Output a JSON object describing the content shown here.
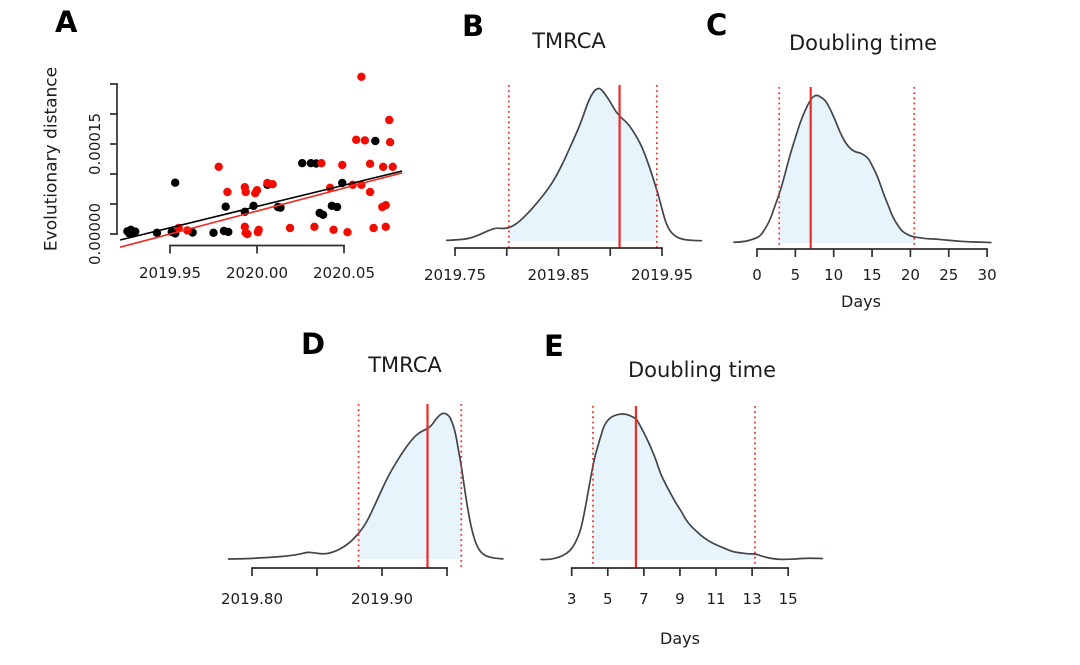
{
  "figure": {
    "background": "#ffffff"
  },
  "colors": {
    "curve": "#40464b",
    "fill": "#e7f4fb",
    "red_line": "#ee2c24",
    "red_point": "#f20c00",
    "black_point": "#000000",
    "axis": "#2e2e2e",
    "text": "#1c1c1c"
  },
  "chart_data": [
    {
      "panel": "A",
      "type": "scatter",
      "title": "",
      "xlabel": "",
      "ylabel": "Evolutionary distance",
      "xlim": [
        2019.92,
        2020.085
      ],
      "ylim": [
        0,
        0.00026
      ],
      "x_ticks": [
        2019.95,
        2020.0,
        2020.05
      ],
      "x_tick_labels": [
        "2019.95",
        "2020.00",
        "2020.05"
      ],
      "y_ticks": [
        0,
        5e-05,
        0.0001,
        0.00015,
        0.0002,
        0.00025
      ],
      "y_tick_labels": [
        "0.00000",
        "",
        "",
        "0.00015",
        "",
        ""
      ],
      "series": [
        {
          "name": "clade-black",
          "color": "#000000",
          "points": [
            [
              2019.9255,
              4.5e-06
            ],
            [
              2019.9265,
              1.5e-06
            ],
            [
              2019.9275,
              7e-06
            ],
            [
              2019.9285,
              2e-06
            ],
            [
              2019.93,
              4e-06
            ],
            [
              2019.9425,
              2e-06
            ],
            [
              2019.951,
              3.5e-06
            ],
            [
              2019.953,
              1e-06
            ],
            [
              2019.953,
              8.55e-05
            ],
            [
              2019.963,
              2.5e-06
            ],
            [
              2019.975,
              2e-06
            ],
            [
              2019.981,
              5e-06
            ],
            [
              2019.982,
              4.55e-05
            ],
            [
              2019.9835,
              3.5e-06
            ],
            [
              2019.993,
              3.7e-05
            ],
            [
              2019.998,
              4.7e-05
            ],
            [
              2020.006,
              8.2e-05
            ],
            [
              2020.012,
              4.5e-05
            ],
            [
              2020.0135,
              4.4e-05
            ],
            [
              2020.026,
              0.000118
            ],
            [
              2020.031,
              0.000118
            ],
            [
              2020.034,
              0.0001175
            ],
            [
              2020.036,
              3.5e-05
            ],
            [
              2020.038,
              3.2e-05
            ],
            [
              2020.043,
              4.7e-05
            ],
            [
              2020.046,
              4.5e-05
            ],
            [
              2020.049,
              8.5e-05
            ],
            [
              2020.068,
              0.000155
            ]
          ]
        },
        {
          "name": "clade-red",
          "color": "#f20c00",
          "points": [
            [
              2019.955,
              1e-05
            ],
            [
              2019.96,
              6e-06
            ],
            [
              2019.978,
              0.000112
            ],
            [
              2019.983,
              7e-05
            ],
            [
              2019.993,
              7.8e-05
            ],
            [
              2019.9935,
              7e-05
            ],
            [
              2019.993,
              1.2e-05
            ],
            [
              2019.9935,
              2e-06
            ],
            [
              2019.9945,
              0.0
            ],
            [
              2019.999,
              6.8e-05
            ],
            [
              2020.0,
              7.3e-05
            ],
            [
              2020.0005,
              3e-06
            ],
            [
              2020.001,
              7e-06
            ],
            [
              2020.006,
              8.5e-05
            ],
            [
              2020.009,
              8.3e-05
            ],
            [
              2020.019,
              1e-05
            ],
            [
              2020.033,
              1.2e-05
            ],
            [
              2020.037,
              0.000118
            ],
            [
              2020.042,
              7.7e-05
            ],
            [
              2020.044,
              7e-06
            ],
            [
              2020.049,
              0.000115
            ],
            [
              2020.052,
              3e-06
            ],
            [
              2020.055,
              8.2e-05
            ],
            [
              2020.057,
              0.000157
            ],
            [
              2020.06,
              8.2e-05
            ],
            [
              2020.06,
              0.000262
            ],
            [
              2020.062,
              0.000156
            ],
            [
              2020.065,
              0.000117
            ],
            [
              2020.065,
              7e-05
            ],
            [
              2020.067,
              1e-05
            ],
            [
              2020.072,
              4.5e-05
            ],
            [
              2020.0725,
              0.000112
            ],
            [
              2020.074,
              4.8e-05
            ],
            [
              2020.074,
              1.2e-05
            ],
            [
              2020.076,
              0.00019
            ],
            [
              2020.0765,
              0.000153
            ],
            [
              2020.078,
              0.000112
            ]
          ]
        }
      ],
      "regression_lines": [
        {
          "name": "black-fit",
          "color": "#000000",
          "x1": 2019.9213,
          "y1": -1e-05,
          "x2": 2020.0834,
          "y2": 0.000105
        },
        {
          "name": "red-fit",
          "color": "#ee2c24",
          "x1": 2019.9213,
          "y1": -2.2e-05,
          "x2": 2020.0834,
          "y2": 0.000102
        }
      ]
    },
    {
      "panel": "B",
      "type": "density",
      "title": "TMRCA",
      "xlabel": "",
      "x_ticks": [
        2019.75,
        2019.8,
        2019.85,
        2019.9,
        2019.95
      ],
      "x_tick_labels": [
        "2019.75",
        "",
        "2019.85",
        "",
        "2019.95"
      ],
      "median": 2019.909,
      "hpd_interval": [
        2019.802,
        2019.945
      ],
      "curve": [
        [
          2019.742,
          0.004
        ],
        [
          2019.755,
          0.008
        ],
        [
          2019.765,
          0.018
        ],
        [
          2019.775,
          0.045
        ],
        [
          2019.7835,
          0.072
        ],
        [
          2019.79,
          0.086
        ],
        [
          2019.7965,
          0.08
        ],
        [
          2019.803,
          0.088
        ],
        [
          2019.81,
          0.115
        ],
        [
          2019.8165,
          0.155
        ],
        [
          2019.823,
          0.2
        ],
        [
          2019.83,
          0.255
        ],
        [
          2019.8365,
          0.31
        ],
        [
          2019.843,
          0.37
        ],
        [
          2019.849,
          0.44
        ],
        [
          2019.855,
          0.52
        ],
        [
          2019.861,
          0.61
        ],
        [
          2019.867,
          0.7
        ],
        [
          2019.8725,
          0.79
        ],
        [
          2019.877,
          0.88
        ],
        [
          2019.881,
          0.945
        ],
        [
          2019.885,
          0.985
        ],
        [
          2019.8885,
          1.0
        ],
        [
          2019.8915,
          0.99
        ],
        [
          2019.895,
          0.96
        ],
        [
          2019.9,
          0.91
        ],
        [
          2019.9045,
          0.855
        ],
        [
          2019.908,
          0.825
        ],
        [
          2019.9115,
          0.8
        ],
        [
          2019.916,
          0.775
        ],
        [
          2019.921,
          0.73
        ],
        [
          2019.926,
          0.675
        ],
        [
          2019.931,
          0.61
        ],
        [
          2019.9355,
          0.53
        ],
        [
          2019.94,
          0.44
        ],
        [
          2019.9445,
          0.345
        ],
        [
          2019.9485,
          0.25
        ],
        [
          2019.9515,
          0.17
        ],
        [
          2019.9545,
          0.105
        ],
        [
          2019.9585,
          0.058
        ],
        [
          2019.963,
          0.03
        ],
        [
          2019.969,
          0.012
        ],
        [
          2019.977,
          0.004
        ],
        [
          2019.988,
          0.002
        ]
      ]
    },
    {
      "panel": "C",
      "type": "density",
      "title": "Doubling time",
      "xlabel": "Days",
      "x_ticks": [
        0,
        5,
        10,
        15,
        20,
        25,
        30
      ],
      "x_tick_labels": [
        "0",
        "5",
        "10",
        "15",
        "20",
        "25",
        "30"
      ],
      "median": 7.0,
      "hpd_interval": [
        2.9,
        20.5
      ],
      "curve": [
        [
          -3.0,
          0.005
        ],
        [
          -1.8,
          0.007
        ],
        [
          -0.5,
          0.025
        ],
        [
          0.4,
          0.045
        ],
        [
          1.0,
          0.09
        ],
        [
          1.7,
          0.155
        ],
        [
          2.3,
          0.245
        ],
        [
          3.0,
          0.345
        ],
        [
          3.7,
          0.475
        ],
        [
          4.3,
          0.595
        ],
        [
          5.0,
          0.71
        ],
        [
          5.6,
          0.81
        ],
        [
          6.3,
          0.9
        ],
        [
          6.9,
          0.96
        ],
        [
          7.3,
          0.99
        ],
        [
          7.8,
          1.0
        ],
        [
          8.2,
          0.99
        ],
        [
          8.9,
          0.965
        ],
        [
          9.5,
          0.91
        ],
        [
          10.2,
          0.83
        ],
        [
          10.8,
          0.75
        ],
        [
          11.5,
          0.68
        ],
        [
          12.1,
          0.64
        ],
        [
          12.8,
          0.615
        ],
        [
          13.4,
          0.61
        ],
        [
          13.8,
          0.6
        ],
        [
          14.5,
          0.575
        ],
        [
          15.1,
          0.515
        ],
        [
          15.8,
          0.44
        ],
        [
          16.4,
          0.345
        ],
        [
          17.1,
          0.255
        ],
        [
          17.7,
          0.175
        ],
        [
          18.4,
          0.115
        ],
        [
          19.0,
          0.075
        ],
        [
          19.7,
          0.055
        ],
        [
          20.3,
          0.042
        ],
        [
          21.3,
          0.035
        ],
        [
          22.2,
          0.028
        ],
        [
          23.0,
          0.028
        ],
        [
          24.3,
          0.022
        ],
        [
          25.6,
          0.015
        ],
        [
          27.4,
          0.008
        ],
        [
          29.1,
          0.006
        ],
        [
          30.5,
          0.003
        ]
      ]
    },
    {
      "panel": "D",
      "type": "density",
      "title": "TMRCA",
      "xlabel": "",
      "x_ticks": [
        2019.8,
        2019.85,
        2019.9,
        2019.95
      ],
      "x_tick_labels": [
        "2019.80",
        "",
        "2019.90",
        ""
      ],
      "median": 2019.935,
      "hpd_interval": [
        2019.882,
        2019.961
      ],
      "curve": [
        [
          2019.782,
          0.0
        ],
        [
          2019.795,
          0.002
        ],
        [
          2019.806,
          0.007
        ],
        [
          2019.818,
          0.014
        ],
        [
          2019.829,
          0.022
        ],
        [
          2019.837,
          0.034
        ],
        [
          2019.843,
          0.048
        ],
        [
          2019.849,
          0.04
        ],
        [
          2019.855,
          0.034
        ],
        [
          2019.861,
          0.042
        ],
        [
          2019.868,
          0.068
        ],
        [
          2019.875,
          0.11
        ],
        [
          2019.881,
          0.164
        ],
        [
          2019.887,
          0.233
        ],
        [
          2019.892,
          0.322
        ],
        [
          2019.898,
          0.438
        ],
        [
          2019.904,
          0.555
        ],
        [
          2019.911,
          0.664
        ],
        [
          2019.918,
          0.76
        ],
        [
          2019.924,
          0.829
        ],
        [
          2019.929,
          0.868
        ],
        [
          2019.9335,
          0.886
        ],
        [
          2019.938,
          0.912
        ],
        [
          2019.942,
          0.966
        ],
        [
          2019.945,
          0.99
        ],
        [
          2019.947,
          1.0
        ],
        [
          2019.95,
          0.992
        ],
        [
          2019.9525,
          0.97
        ],
        [
          2019.956,
          0.885
        ],
        [
          2019.9585,
          0.765
        ],
        [
          2019.9615,
          0.61
        ],
        [
          2019.964,
          0.452
        ],
        [
          2019.9665,
          0.315
        ],
        [
          2019.969,
          0.2
        ],
        [
          2019.973,
          0.082
        ],
        [
          2019.978,
          0.027
        ],
        [
          2019.985,
          0.007
        ],
        [
          2019.993,
          0.001
        ]
      ]
    },
    {
      "panel": "E",
      "type": "density",
      "title": "Doubling time",
      "xlabel": "Days",
      "x_ticks": [
        3,
        5,
        7,
        9,
        11,
        13,
        15
      ],
      "x_tick_labels": [
        "3",
        "5",
        "7",
        "9",
        "11",
        "13",
        "15"
      ],
      "median": 6.56,
      "hpd_interval": [
        4.18,
        13.16
      ],
      "curve": [
        [
          1.3,
          0.004
        ],
        [
          1.7,
          0.002
        ],
        [
          2.1,
          0.012
        ],
        [
          2.5,
          0.028
        ],
        [
          2.9,
          0.062
        ],
        [
          3.2,
          0.115
        ],
        [
          3.5,
          0.205
        ],
        [
          3.7,
          0.322
        ],
        [
          3.9,
          0.46
        ],
        [
          4.1,
          0.596
        ],
        [
          4.3,
          0.719
        ],
        [
          4.6,
          0.842
        ],
        [
          4.8,
          0.925
        ],
        [
          5.1,
          0.972
        ],
        [
          5.4,
          0.992
        ],
        [
          5.7,
          1.0
        ],
        [
          6.0,
          1.0
        ],
        [
          6.3,
          0.986
        ],
        [
          6.6,
          0.965
        ],
        [
          6.8,
          0.918
        ],
        [
          7.1,
          0.849
        ],
        [
          7.4,
          0.767
        ],
        [
          7.7,
          0.678
        ],
        [
          7.9,
          0.596
        ],
        [
          8.2,
          0.52
        ],
        [
          8.5,
          0.452
        ],
        [
          8.8,
          0.384
        ],
        [
          9.1,
          0.329
        ],
        [
          9.3,
          0.281
        ],
        [
          9.6,
          0.233
        ],
        [
          9.9,
          0.199
        ],
        [
          10.2,
          0.164
        ],
        [
          10.6,
          0.13
        ],
        [
          10.9,
          0.11
        ],
        [
          11.3,
          0.089
        ],
        [
          11.7,
          0.068
        ],
        [
          12.0,
          0.055
        ],
        [
          12.4,
          0.048
        ],
        [
          12.8,
          0.042
        ],
        [
          13.2,
          0.042
        ],
        [
          13.5,
          0.028
        ],
        [
          13.9,
          0.014
        ],
        [
          14.4,
          0.005
        ],
        [
          14.8,
          0.004
        ],
        [
          15.4,
          0.007
        ],
        [
          15.9,
          0.012
        ],
        [
          16.5,
          0.012
        ],
        [
          16.9,
          0.01
        ]
      ]
    }
  ]
}
